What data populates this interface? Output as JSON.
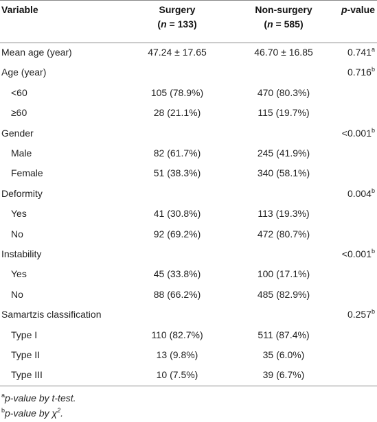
{
  "header": {
    "columns": [
      {
        "lines": [
          [
            {
              "text": "Variable"
            }
          ]
        ]
      },
      {
        "lines": [
          [
            {
              "text": "Surgery"
            }
          ],
          [
            {
              "text": "("
            },
            {
              "text": "n",
              "italic": true
            },
            {
              "text": " = 133)"
            }
          ]
        ]
      },
      {
        "lines": [
          [
            {
              "text": "Non-surgery"
            }
          ],
          [
            {
              "text": "("
            },
            {
              "text": "n",
              "italic": true
            },
            {
              "text": " = 585)"
            }
          ]
        ]
      },
      {
        "lines": [
          [
            {
              "text": "p",
              "italic": true
            },
            {
              "text": "-value"
            }
          ]
        ]
      }
    ]
  },
  "table": {
    "rows": [
      {
        "cells": [
          "Mean age (year)",
          "47.24 ± 17.65",
          "46.70 ± 16.85",
          "0.741"
        ],
        "sup": "a",
        "indent": false
      },
      {
        "cells": [
          "Age (year)",
          "",
          "",
          "0.716"
        ],
        "sup": "b",
        "indent": false
      },
      {
        "cells": [
          "<60",
          "105 (78.9%)",
          "470 (80.3%)",
          ""
        ],
        "indent": true
      },
      {
        "cells": [
          "≥60",
          "28 (21.1%)",
          "115 (19.7%)",
          ""
        ],
        "indent": true
      },
      {
        "cells": [
          "Gender",
          "",
          "",
          "<0.001"
        ],
        "sup": "b",
        "indent": false
      },
      {
        "cells": [
          "Male",
          "82 (61.7%)",
          "245 (41.9%)",
          ""
        ],
        "indent": true
      },
      {
        "cells": [
          "Female",
          "51 (38.3%)",
          "340 (58.1%)",
          ""
        ],
        "indent": true
      },
      {
        "cells": [
          "Deformity",
          "",
          "",
          "0.004"
        ],
        "sup": "b",
        "indent": false
      },
      {
        "cells": [
          "Yes",
          "41 (30.8%)",
          "113 (19.3%)",
          ""
        ],
        "indent": true
      },
      {
        "cells": [
          "No",
          "92 (69.2%)",
          "472 (80.7%)",
          ""
        ],
        "indent": true
      },
      {
        "cells": [
          "Instability",
          "",
          "",
          "<0.001"
        ],
        "sup": "b",
        "indent": false
      },
      {
        "cells": [
          "Yes",
          "45 (33.8%)",
          "100 (17.1%)",
          ""
        ],
        "indent": true
      },
      {
        "cells": [
          "No",
          "88 (66.2%)",
          "485 (82.9%)",
          ""
        ],
        "indent": true
      },
      {
        "cells": [
          "Samartzis classification",
          "",
          "",
          "0.257"
        ],
        "sup": "b",
        "indent": false
      },
      {
        "cells": [
          "Type I",
          "110 (82.7%)",
          "511 (87.4%)",
          ""
        ],
        "indent": true
      },
      {
        "cells": [
          "Type II",
          "13 (9.8%)",
          "35 (6.0%)",
          ""
        ],
        "indent": true
      },
      {
        "cells": [
          "Type III",
          "10 (7.5%)",
          "39 (6.7%)",
          ""
        ],
        "indent": true
      }
    ]
  },
  "footnotes": [
    [
      {
        "text": "a",
        "sup": true
      },
      {
        "text": "p-value by t-test.",
        "italic": true
      }
    ],
    [
      {
        "text": "b",
        "sup": true
      },
      {
        "text": "p-value by χ",
        "italic": true
      },
      {
        "text": "2",
        "sup": true,
        "italic": true
      },
      {
        "text": ".",
        "italic": true
      }
    ]
  ]
}
